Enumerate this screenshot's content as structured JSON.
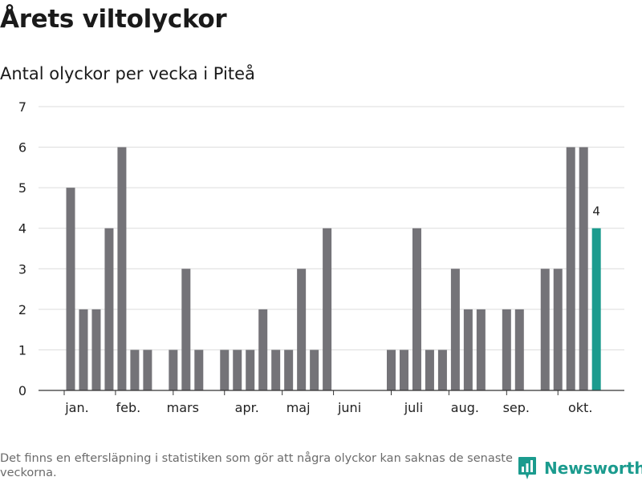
{
  "header": {
    "title": "Årets viltolyckor",
    "subtitle": "Antal olyckor per vecka i Piteå"
  },
  "footer": {
    "note": "Det finns en eftersläpning i statistiken som gör att några olyckor kan saknas de senaste veckorna.",
    "brand": "Newsworthy"
  },
  "colors": {
    "bar": "#747378",
    "highlight": "#1b9b8e",
    "grid": "#dcdcdc",
    "axis": "#333333"
  },
  "chart_data": {
    "type": "bar",
    "title": "Årets viltolyckor",
    "subtitle": "Antal olyckor per vecka i Piteå",
    "xlabel": "",
    "ylabel": "",
    "ylim": [
      0,
      7
    ],
    "yticks": [
      0,
      1,
      2,
      3,
      4,
      5,
      6,
      7
    ],
    "grid": true,
    "x": [
      1,
      2,
      3,
      4,
      5,
      6,
      7,
      8,
      9,
      10,
      11,
      12,
      13,
      14,
      15,
      16,
      17,
      18,
      19,
      20,
      21,
      22,
      23,
      24,
      25,
      26,
      27,
      28,
      29,
      30,
      31,
      32,
      33,
      34,
      35,
      36,
      37,
      38,
      39,
      40,
      41,
      42
    ],
    "values": [
      5,
      2,
      2,
      4,
      6,
      1,
      1,
      0,
      1,
      3,
      1,
      0,
      1,
      1,
      1,
      2,
      1,
      1,
      3,
      1,
      4,
      0,
      0,
      0,
      0,
      1,
      1,
      4,
      1,
      1,
      3,
      2,
      2,
      0,
      2,
      2,
      0,
      3,
      3,
      6,
      6,
      4
    ],
    "highlight_index": 41,
    "highlight_label": "4",
    "month_labels": [
      {
        "label": "jan.",
        "x": 1.5
      },
      {
        "label": "feb.",
        "x": 5.5
      },
      {
        "label": "mars",
        "x": 9.75
      },
      {
        "label": "apr.",
        "x": 14.75
      },
      {
        "label": "maj",
        "x": 18.75
      },
      {
        "label": "juni",
        "x": 22.75
      },
      {
        "label": "juli",
        "x": 27.75
      },
      {
        "label": "aug.",
        "x": 31.75
      },
      {
        "label": "sep.",
        "x": 35.75
      },
      {
        "label": "okt.",
        "x": 40.75
      }
    ],
    "month_ticks": [
      0.5,
      4.5,
      9,
      13,
      17.5,
      21.5,
      26,
      30.5,
      35,
      39
    ]
  }
}
